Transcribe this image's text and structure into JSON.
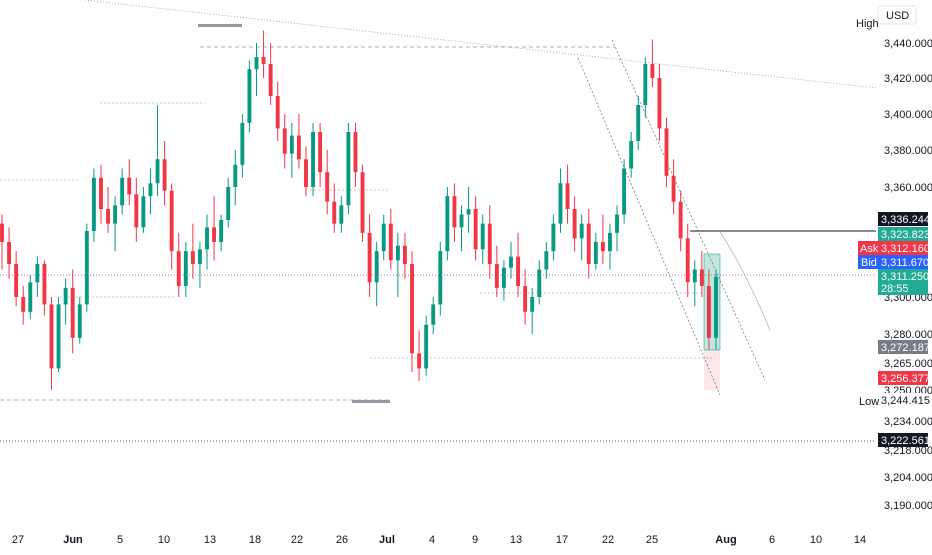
{
  "currency": "USD",
  "high_label": "High",
  "low_label": "Low",
  "ask_label": "Ask",
  "bid_label": "Bid",
  "price_axis": {
    "ticks": [
      "3,440.000",
      "3,420.000",
      "3,400.000",
      "3,380.000",
      "3,360.000",
      "3,300.000",
      "3,280.000",
      "3,265.000",
      "3,250.000",
      "3,234.000",
      "3,218.000",
      "3,204.000",
      "3,190.000"
    ],
    "tick_values": [
      3440,
      3420,
      3400,
      3380,
      3360,
      3300,
      3280,
      3265,
      3250,
      3234,
      3218,
      3204,
      3190
    ]
  },
  "price_tags": {
    "level_top": "3,336.244",
    "green_1": "3,323.823",
    "ask": "3,312.160",
    "bid": "3,311.670",
    "green_2": "3,311.250",
    "countdown": "28:55",
    "grey": "3,272.187",
    "red": "3,256.377",
    "low": "3,244.415",
    "bottom": "3,222.561"
  },
  "colors": {
    "up": "#089981",
    "down": "#f23645",
    "green_tag": "#22ab94",
    "red_tag": "#f23645",
    "blue_tag": "#2962ff",
    "grey_tag": "#787b86",
    "black_tag": "#131722"
  },
  "chart_data": {
    "type": "candlestick",
    "x_labels": [
      "27",
      "Jun",
      "5",
      "10",
      "13",
      "18",
      "22",
      "26",
      "Jul",
      "4",
      "9",
      "13",
      "17",
      "22",
      "25",
      "Aug",
      "6",
      "10",
      "14"
    ],
    "ylim": [
      3185,
      3460
    ],
    "candles": [
      [
        3340,
        3345,
        3315,
        3330
      ],
      [
        3330,
        3338,
        3310,
        3318
      ],
      [
        3318,
        3325,
        3295,
        3300
      ],
      [
        3300,
        3306,
        3285,
        3292
      ],
      [
        3292,
        3312,
        3288,
        3308
      ],
      [
        3308,
        3322,
        3300,
        3318
      ],
      [
        3318,
        3320,
        3290,
        3296
      ],
      [
        3296,
        3300,
        3250,
        3262
      ],
      [
        3262,
        3300,
        3260,
        3296
      ],
      [
        3296,
        3310,
        3285,
        3305
      ],
      [
        3305,
        3315,
        3270,
        3278
      ],
      [
        3278,
        3300,
        3275,
        3296
      ],
      [
        3296,
        3340,
        3292,
        3336
      ],
      [
        3336,
        3370,
        3330,
        3365
      ],
      [
        3365,
        3372,
        3340,
        3348
      ],
      [
        3348,
        3360,
        3335,
        3340
      ],
      [
        3340,
        3355,
        3325,
        3350
      ],
      [
        3350,
        3370,
        3345,
        3365
      ],
      [
        3365,
        3375,
        3350,
        3356
      ],
      [
        3356,
        3365,
        3330,
        3338
      ],
      [
        3338,
        3360,
        3335,
        3355
      ],
      [
        3355,
        3370,
        3345,
        3362
      ],
      [
        3362,
        3405,
        3355,
        3375
      ],
      [
        3375,
        3385,
        3350,
        3358
      ],
      [
        3358,
        3362,
        3315,
        3325
      ],
      [
        3325,
        3335,
        3300,
        3306
      ],
      [
        3306,
        3330,
        3300,
        3325
      ],
      [
        3325,
        3340,
        3310,
        3318
      ],
      [
        3318,
        3330,
        3305,
        3326
      ],
      [
        3326,
        3345,
        3315,
        3338
      ],
      [
        3338,
        3355,
        3320,
        3330
      ],
      [
        3330,
        3345,
        3325,
        3342
      ],
      [
        3342,
        3365,
        3338,
        3360
      ],
      [
        3360,
        3380,
        3350,
        3372
      ],
      [
        3372,
        3400,
        3365,
        3395
      ],
      [
        3395,
        3430,
        3390,
        3425
      ],
      [
        3425,
        3440,
        3410,
        3432
      ],
      [
        3432,
        3447,
        3420,
        3428
      ],
      [
        3428,
        3440,
        3405,
        3410
      ],
      [
        3410,
        3418,
        3385,
        3392
      ],
      [
        3392,
        3400,
        3370,
        3378
      ],
      [
        3378,
        3395,
        3365,
        3388
      ],
      [
        3388,
        3400,
        3370,
        3375
      ],
      [
        3375,
        3382,
        3355,
        3360
      ],
      [
        3360,
        3395,
        3355,
        3390
      ],
      [
        3390,
        3395,
        3360,
        3368
      ],
      [
        3368,
        3380,
        3345,
        3352
      ],
      [
        3352,
        3362,
        3335,
        3340
      ],
      [
        3340,
        3355,
        3335,
        3350
      ],
      [
        3350,
        3395,
        3345,
        3390
      ],
      [
        3390,
        3395,
        3360,
        3368
      ],
      [
        3368,
        3372,
        3330,
        3335
      ],
      [
        3335,
        3345,
        3300,
        3308
      ],
      [
        3308,
        3330,
        3295,
        3325
      ],
      [
        3325,
        3345,
        3320,
        3340
      ],
      [
        3340,
        3348,
        3315,
        3320
      ],
      [
        3320,
        3335,
        3300,
        3328
      ],
      [
        3328,
        3335,
        3310,
        3318
      ],
      [
        3318,
        3325,
        3260,
        3270
      ],
      [
        3270,
        3282,
        3255,
        3262
      ],
      [
        3262,
        3290,
        3258,
        3285
      ],
      [
        3285,
        3300,
        3280,
        3296
      ],
      [
        3296,
        3330,
        3290,
        3325
      ],
      [
        3325,
        3360,
        3320,
        3355
      ],
      [
        3355,
        3362,
        3330,
        3338
      ],
      [
        3338,
        3350,
        3325,
        3345
      ],
      [
        3345,
        3360,
        3335,
        3348
      ],
      [
        3348,
        3355,
        3320,
        3326
      ],
      [
        3326,
        3345,
        3318,
        3340
      ],
      [
        3340,
        3350,
        3310,
        3318
      ],
      [
        3318,
        3328,
        3300,
        3305
      ],
      [
        3305,
        3320,
        3298,
        3316
      ],
      [
        3316,
        3330,
        3310,
        3322
      ],
      [
        3322,
        3335,
        3300,
        3306
      ],
      [
        3306,
        3315,
        3285,
        3292
      ],
      [
        3292,
        3305,
        3280,
        3300
      ],
      [
        3300,
        3320,
        3296,
        3315
      ],
      [
        3315,
        3330,
        3310,
        3325
      ],
      [
        3325,
        3345,
        3320,
        3340
      ],
      [
        3340,
        3370,
        3335,
        3362
      ],
      [
        3362,
        3372,
        3340,
        3348
      ],
      [
        3348,
        3355,
        3325,
        3332
      ],
      [
        3332,
        3345,
        3320,
        3340
      ],
      [
        3340,
        3348,
        3310,
        3318
      ],
      [
        3318,
        3335,
        3315,
        3330
      ],
      [
        3330,
        3345,
        3318,
        3325
      ],
      [
        3325,
        3340,
        3315,
        3335
      ],
      [
        3335,
        3350,
        3325,
        3345
      ],
      [
        3345,
        3375,
        3340,
        3370
      ],
      [
        3370,
        3390,
        3365,
        3385
      ],
      [
        3385,
        3410,
        3380,
        3405
      ],
      [
        3405,
        3432,
        3398,
        3428
      ],
      [
        3428,
        3442,
        3415,
        3420
      ],
      [
        3420,
        3428,
        3385,
        3392
      ],
      [
        3392,
        3398,
        3360,
        3366
      ],
      [
        3366,
        3375,
        3345,
        3352
      ],
      [
        3352,
        3358,
        3325,
        3332
      ],
      [
        3332,
        3340,
        3300,
        3308
      ],
      [
        3308,
        3320,
        3295,
        3315
      ],
      [
        3315,
        3325,
        3300,
        3306
      ],
      [
        3306,
        3315,
        3272,
        3278
      ],
      [
        3278,
        3315,
        3272,
        3311
      ]
    ]
  }
}
